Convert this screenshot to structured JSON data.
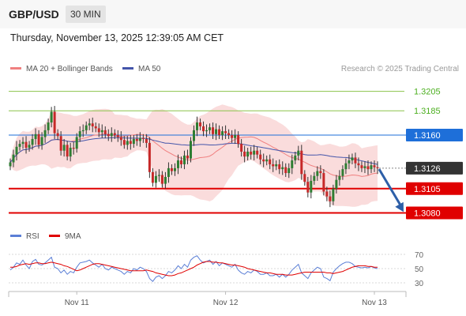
{
  "header": {
    "symbol": "GBP/USD",
    "timeframe": "30 MIN"
  },
  "timestamp": "Thursday, November 13, 2025 12:39:05 AM CET",
  "credit": "Research © 2025 Trading Central",
  "colors": {
    "bull": "#2e7d32",
    "bear": "#c62828",
    "wick": "#333333",
    "bb_fill": "#f9d6d6",
    "ma20": "#f08080",
    "ma50": "#4455aa",
    "resistance": "#8bc34a",
    "pivot": "#1e6fd9",
    "support": "#e00000",
    "rsi": "#5b7fd6",
    "rsi_ma": "#e00000",
    "arrow": "#2d5fa8",
    "last": "#333333"
  },
  "chart_data": [
    {
      "type": "candlestick",
      "title": "GBP/USD 30 MIN",
      "legend": [
        {
          "label": "MA 20 + Bollinger Bands",
          "color": "#f08080"
        },
        {
          "label": "MA 50",
          "color": "#4455aa"
        }
      ],
      "legend_placement": "top-left",
      "ylim": [
        1.3078,
        1.3212
      ],
      "x_ticks": [
        {
          "label": "Nov 11",
          "index": 21
        },
        {
          "label": "Nov 12",
          "index": 68
        },
        {
          "label": "Nov 13",
          "index": 115
        }
      ],
      "levels": [
        {
          "value": 1.3205,
          "label": "1.3205",
          "kind": "resistance"
        },
        {
          "value": 1.3185,
          "label": "1.3185",
          "kind": "resistance"
        },
        {
          "value": 1.316,
          "label": "1.3160",
          "kind": "pivot"
        },
        {
          "value": 1.3126,
          "label": "1.3126",
          "kind": "last"
        },
        {
          "value": 1.3105,
          "label": "1.3105",
          "kind": "support"
        },
        {
          "value": 1.308,
          "label": "1.3080",
          "kind": "support"
        }
      ],
      "last_price": 1.3126,
      "forecast_arrow": {
        "from": 1.3125,
        "to": 1.3081
      },
      "closes": [
        1.3132,
        1.314,
        1.3148,
        1.3151,
        1.3153,
        1.3147,
        1.315,
        1.3156,
        1.3161,
        1.315,
        1.3158,
        1.3165,
        1.3173,
        1.3184,
        1.3162,
        1.3159,
        1.3144,
        1.315,
        1.3138,
        1.3147,
        1.3146,
        1.3158,
        1.3164,
        1.3165,
        1.317,
        1.3172,
        1.3169,
        1.3167,
        1.3163,
        1.3165,
        1.3161,
        1.3159,
        1.3162,
        1.316,
        1.3158,
        1.3155,
        1.315,
        1.3154,
        1.3151,
        1.3156,
        1.3154,
        1.3157,
        1.3156,
        1.3152,
        1.3122,
        1.3111,
        1.3118,
        1.3119,
        1.311,
        1.3117,
        1.3126,
        1.3123,
        1.3126,
        1.3134,
        1.313,
        1.3139,
        1.3136,
        1.3154,
        1.3165,
        1.3173,
        1.3169,
        1.3164,
        1.3165,
        1.3168,
        1.3161,
        1.3166,
        1.316,
        1.3164,
        1.3162,
        1.316,
        1.3157,
        1.316,
        1.3151,
        1.3143,
        1.3138,
        1.3143,
        1.314,
        1.3144,
        1.314,
        1.3135,
        1.3133,
        1.3135,
        1.313,
        1.3128,
        1.313,
        1.3125,
        1.3127,
        1.3121,
        1.3126,
        1.3134,
        1.3139,
        1.3144,
        1.312,
        1.3112,
        1.3101,
        1.3113,
        1.3118,
        1.3123,
        1.3121,
        1.3102,
        1.3097,
        1.3092,
        1.3105,
        1.3114,
        1.3118,
        1.3125,
        1.3131,
        1.3134,
        1.3137,
        1.3131,
        1.3129,
        1.3126,
        1.3128,
        1.3125,
        1.3129,
        1.3127,
        1.3126
      ]
    },
    {
      "type": "line",
      "legend": [
        {
          "label": "RSI",
          "color": "#5b7fd6"
        },
        {
          "label": "9MA",
          "color": "#e00000"
        }
      ],
      "ylim": [
        25,
        75
      ],
      "y_ticks": [
        "70",
        "50",
        "30"
      ],
      "series": [
        {
          "name": "RSI",
          "values": [
            48,
            52,
            58,
            56,
            62,
            55,
            50,
            60,
            63,
            56,
            55,
            58,
            62,
            66,
            52,
            50,
            44,
            48,
            42,
            46,
            44,
            52,
            58,
            59,
            60,
            62,
            58,
            55,
            52,
            56,
            50,
            48,
            52,
            50,
            48,
            46,
            42,
            46,
            44,
            50,
            48,
            52,
            50,
            46,
            36,
            32,
            38,
            40,
            36,
            40,
            46,
            44,
            48,
            54,
            50,
            56,
            52,
            62,
            66,
            68,
            62,
            58,
            60,
            62,
            56,
            60,
            54,
            58,
            56,
            54,
            52,
            56,
            48,
            44,
            42,
            46,
            44,
            48,
            46,
            42,
            42,
            44,
            40,
            40,
            42,
            38,
            42,
            38,
            42,
            48,
            52,
            56,
            44,
            40,
            36,
            44,
            48,
            52,
            50,
            38,
            36,
            33,
            45,
            50,
            54,
            57,
            59,
            59,
            57,
            53,
            52,
            51,
            52,
            51,
            53,
            51,
            50
          ]
        },
        {
          "name": "9MA",
          "values": [
            52,
            52,
            53,
            55,
            56,
            57,
            56,
            57,
            58,
            58,
            57,
            57,
            58,
            59,
            58,
            57,
            56,
            54,
            53,
            51,
            49,
            47,
            48,
            50,
            52,
            54,
            56,
            57,
            57,
            56,
            55,
            54,
            53,
            52,
            51,
            50,
            49,
            48,
            47,
            47,
            47,
            47,
            47,
            48,
            47,
            46,
            44,
            43,
            42,
            41,
            40,
            40,
            41,
            43,
            44,
            46,
            48,
            50,
            52,
            55,
            57,
            59,
            60,
            60,
            59,
            59,
            58,
            58,
            57,
            56,
            55,
            55,
            54,
            53,
            52,
            50,
            49,
            48,
            47,
            46,
            45,
            44,
            44,
            43,
            42,
            42,
            42,
            41,
            41,
            41,
            42,
            43,
            44,
            45,
            45,
            45,
            45,
            45,
            45,
            45,
            44,
            44,
            43,
            44,
            45,
            46,
            48,
            50,
            52,
            53,
            54,
            54,
            54,
            53,
            53,
            52,
            52
          ]
        }
      ]
    }
  ]
}
